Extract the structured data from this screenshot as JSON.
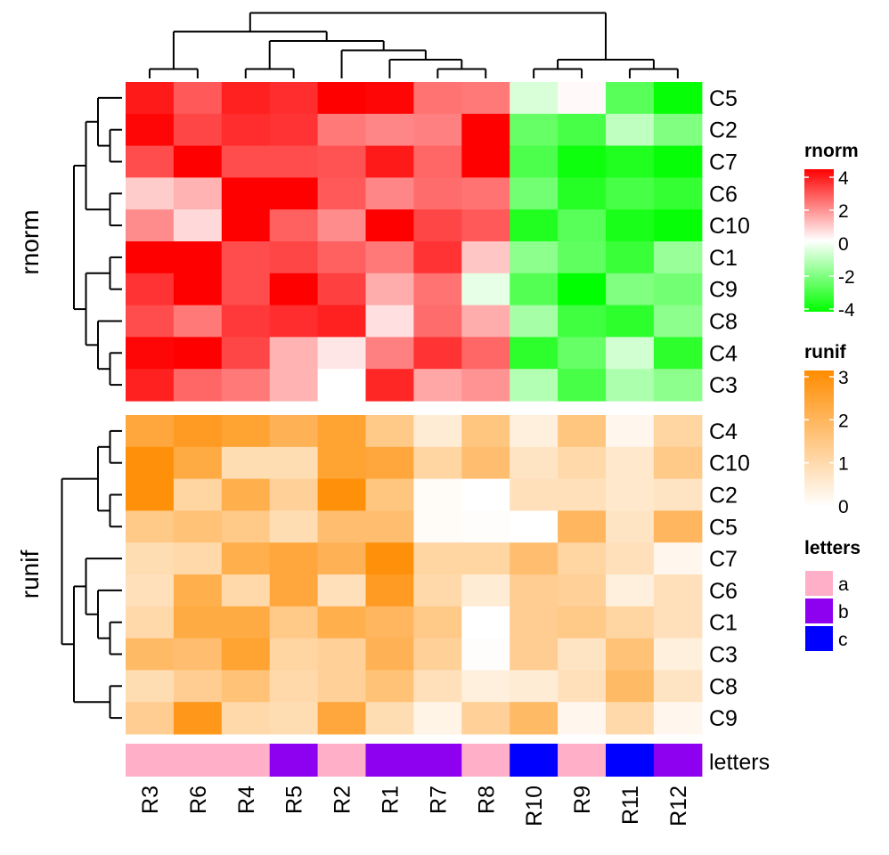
{
  "chart_data": {
    "type": "heatmap",
    "columns": [
      "R3",
      "R6",
      "R4",
      "R5",
      "R2",
      "R1",
      "R7",
      "R8",
      "R10",
      "R9",
      "R11",
      "R12"
    ],
    "heatmaps": [
      {
        "name": "rnorm",
        "row_title": "rnorm",
        "rows": [
          "C5",
          "C2",
          "C7",
          "C6",
          "C10",
          "C1",
          "C9",
          "C8",
          "C4",
          "C3"
        ],
        "values": [
          [
            3.6,
            2.6,
            3.5,
            3.3,
            4.1,
            3.9,
            2.2,
            2.1,
            -0.6,
            0.1,
            -2.6,
            -3.9
          ],
          [
            3.9,
            2.9,
            3.3,
            3.2,
            2.1,
            1.9,
            2.0,
            4.1,
            -2.4,
            -2.9,
            -1.0,
            -2.0
          ],
          [
            2.8,
            4.2,
            2.8,
            2.8,
            2.7,
            3.6,
            2.4,
            4.2,
            -2.8,
            -3.8,
            -3.5,
            -3.9
          ],
          [
            0.8,
            1.2,
            4.1,
            4.0,
            2.6,
            1.9,
            2.3,
            2.2,
            -2.2,
            -3.4,
            -2.9,
            -3.2
          ],
          [
            1.8,
            0.6,
            4.0,
            2.5,
            1.8,
            4.1,
            2.9,
            2.6,
            -3.5,
            -2.6,
            -3.6,
            -3.9
          ],
          [
            4.1,
            4.1,
            2.8,
            2.9,
            2.5,
            2.1,
            3.2,
            0.9,
            -1.8,
            -2.5,
            -3.1,
            -1.6
          ],
          [
            3.2,
            4.1,
            2.8,
            4.0,
            3.0,
            1.3,
            2.2,
            -0.4,
            -2.7,
            -4.0,
            -2.0,
            -2.2
          ],
          [
            2.8,
            2.1,
            3.1,
            3.3,
            3.5,
            0.5,
            2.3,
            1.3,
            -1.4,
            -3.0,
            -3.3,
            -1.8
          ],
          [
            3.9,
            4.1,
            2.9,
            1.2,
            0.4,
            2.0,
            3.2,
            2.4,
            -3.3,
            -2.4,
            -0.7,
            -3.3
          ],
          [
            3.5,
            2.4,
            2.1,
            1.2,
            0.0,
            3.4,
            1.4,
            1.7,
            -1.2,
            -2.9,
            -1.3,
            -1.8
          ]
        ],
        "colors": {
          "low": "#00ff00",
          "mid": "#ffffff",
          "high": "#ff0000"
        },
        "legend": {
          "title": "rnorm",
          "range": [
            -4,
            4
          ],
          "ticks": [
            "4",
            "2",
            "0",
            "-2",
            "-4"
          ]
        }
      },
      {
        "name": "runif",
        "row_title": "runif",
        "rows": [
          "C4",
          "C10",
          "C2",
          "C5",
          "C7",
          "C6",
          "C1",
          "C3",
          "C8",
          "C9"
        ],
        "values": [
          [
            2.3,
            2.6,
            2.4,
            2.0,
            2.4,
            1.4,
            0.5,
            1.5,
            0.4,
            1.5,
            0.2,
            1.1
          ],
          [
            2.9,
            2.2,
            0.9,
            0.9,
            2.4,
            2.3,
            1.1,
            1.7,
            0.7,
            1.0,
            0.6,
            1.4
          ],
          [
            2.9,
            1.1,
            2.1,
            1.2,
            2.9,
            1.5,
            0.1,
            0.0,
            0.8,
            0.8,
            0.6,
            0.7
          ],
          [
            1.4,
            1.6,
            1.4,
            0.9,
            1.7,
            1.7,
            0.1,
            0.05,
            0.0,
            1.9,
            0.7,
            1.9
          ],
          [
            0.9,
            1.0,
            2.1,
            2.3,
            2.0,
            2.9,
            1.1,
            1.1,
            1.7,
            1.1,
            0.8,
            0.2
          ],
          [
            0.8,
            2.1,
            1.0,
            2.3,
            0.8,
            2.6,
            1.0,
            0.5,
            1.3,
            1.2,
            0.4,
            0.8
          ],
          [
            1.0,
            2.2,
            2.2,
            1.4,
            2.1,
            1.9,
            1.4,
            0.0,
            1.3,
            1.4,
            1.1,
            0.8
          ],
          [
            1.8,
            1.7,
            2.4,
            1.1,
            1.2,
            2.0,
            1.2,
            0.05,
            1.3,
            0.7,
            1.6,
            0.4
          ],
          [
            0.9,
            1.3,
            1.6,
            1.0,
            1.2,
            1.6,
            0.8,
            0.4,
            0.5,
            0.8,
            1.8,
            0.7
          ],
          [
            1.3,
            2.7,
            1.0,
            0.9,
            2.3,
            0.9,
            0.3,
            1.2,
            1.8,
            0.2,
            1.0,
            0.2
          ]
        ],
        "colors": {
          "low": "#ffffff",
          "high": "#ff8c00"
        },
        "legend": {
          "title": "runif",
          "range": [
            0,
            3
          ],
          "ticks": [
            "3",
            "2",
            "1",
            "0"
          ]
        }
      }
    ],
    "annotation": {
      "name": "letters",
      "values": [
        "a",
        "a",
        "a",
        "b",
        "a",
        "b",
        "b",
        "a",
        "c",
        "a",
        "c",
        "b"
      ],
      "colors": {
        "a": "#ffb0c8",
        "b": "#8e00f0",
        "c": "#0000ff"
      },
      "legend": {
        "title": "letters",
        "entries": [
          "a",
          "b",
          "c"
        ]
      }
    },
    "dendrograms": {
      "columns": [
        [
          [
            [
              0,
              1
            ],
            [
              [
                2,
                3
              ],
              [
                4,
                [
                  5,
                  [
                    6,
                    7
                  ]
                ]
              ]
            ]
          ]
        ],
        [
          [
            8,
            9
          ],
          [
            10,
            11
          ]
        ]
      ],
      "rnorm_rows": [
        [
          [
            0,
            [
              1,
              2
            ]
          ],
          [
            3,
            4
          ]
        ],
        [
          [
            5,
            6
          ],
          [
            7,
            [
              8,
              9
            ]
          ]
        ]
      ],
      "runif_rows": [
        [
          [
            [
              0,
              1
            ],
            [
              2,
              3
            ]
          ]
        ],
        [
          [
            4,
            [
              5,
              [
                6,
                7
              ]
            ]
          ],
          [
            8,
            9
          ]
        ]
      ]
    },
    "grid": false
  }
}
